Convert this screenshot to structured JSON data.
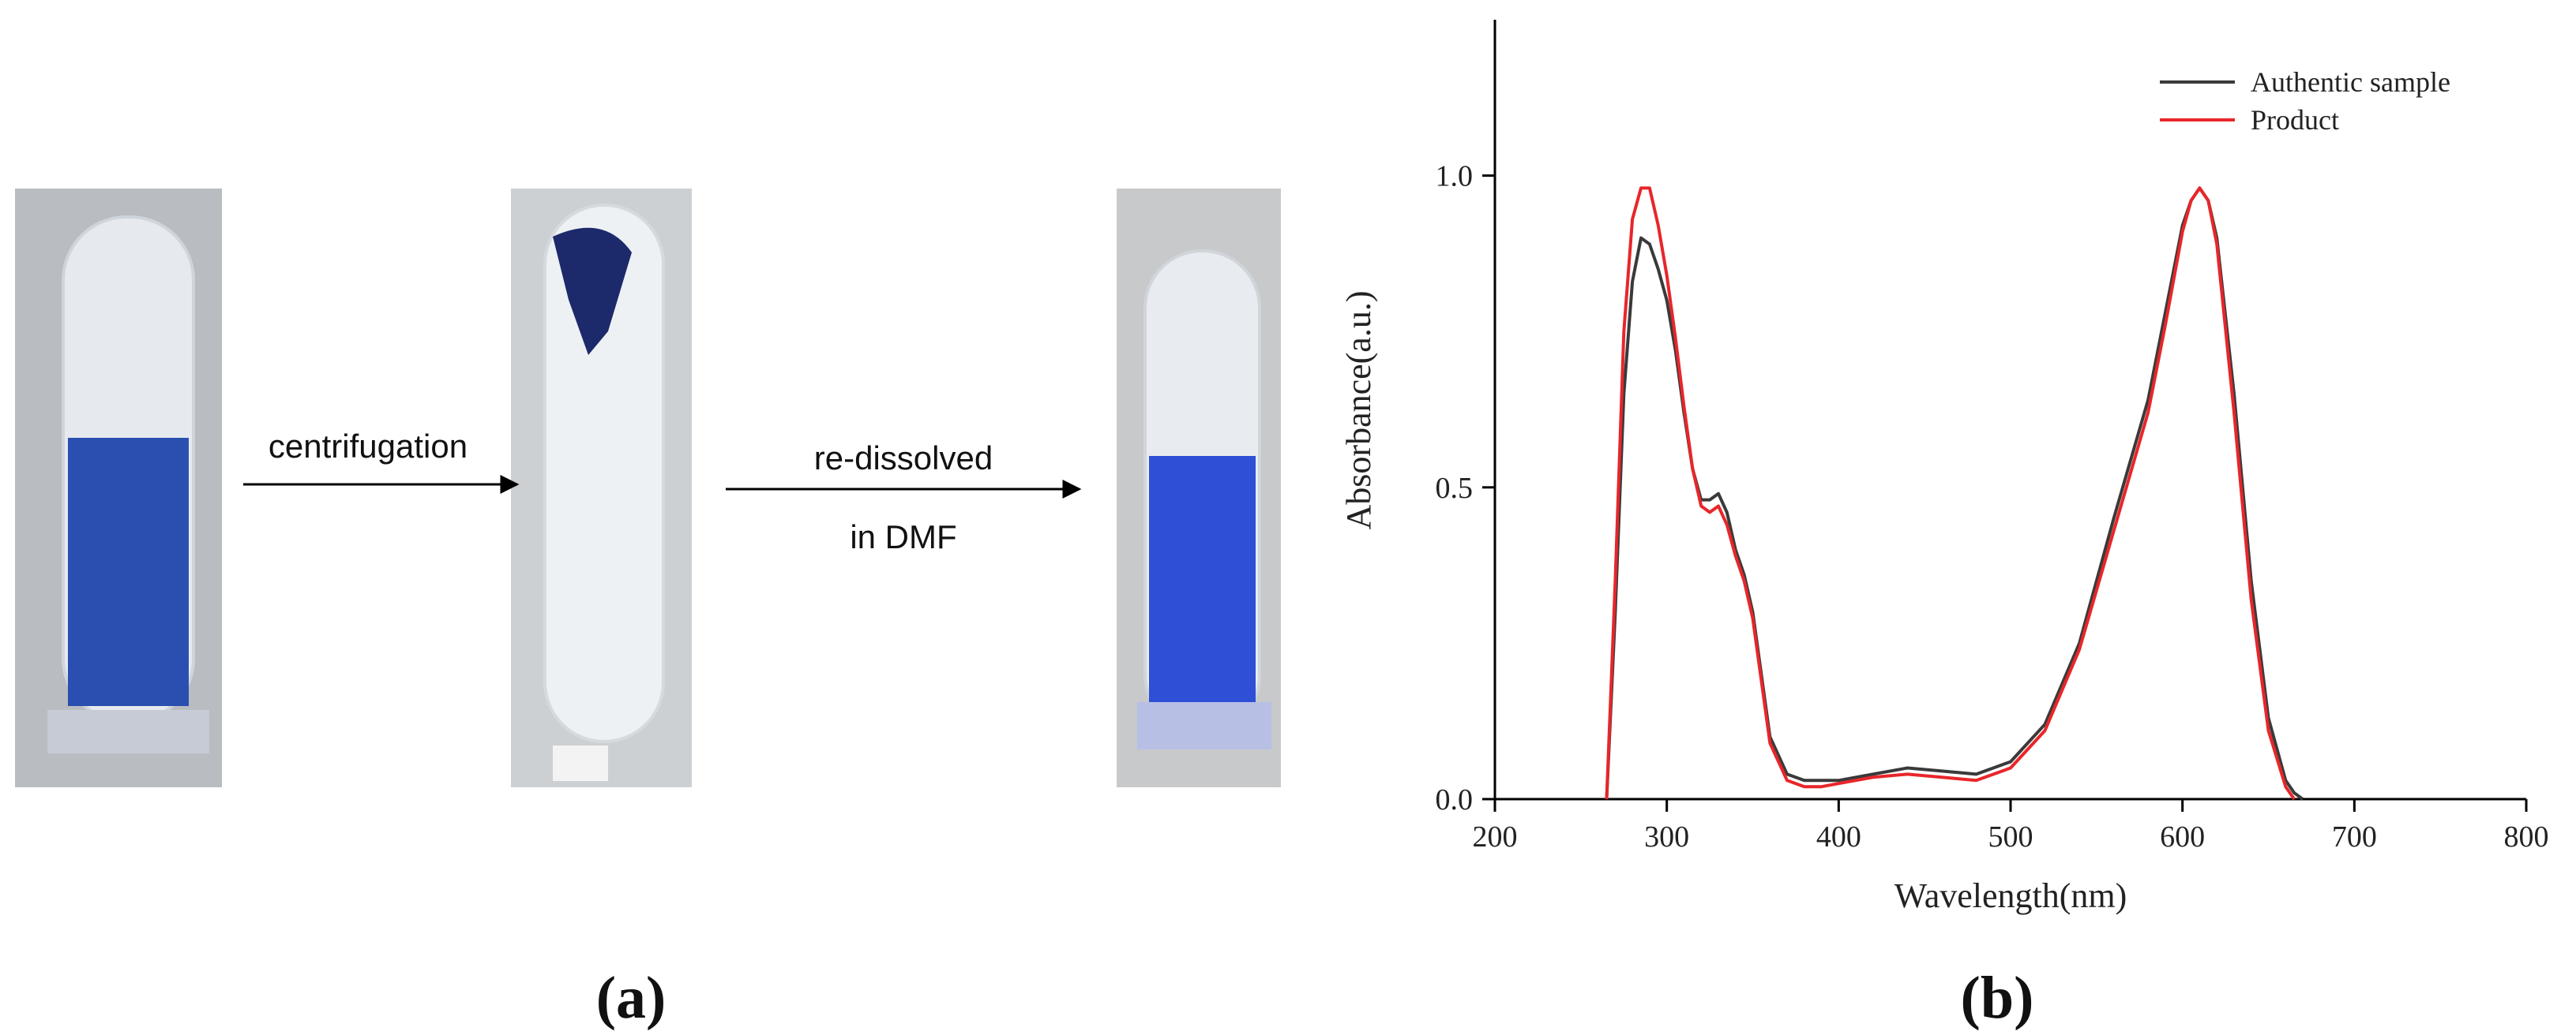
{
  "panel_a": {
    "step_1": "centrifugation",
    "step_2_line_1": "re-dissolved",
    "step_2_line_2": "in DMF",
    "label": "(a)"
  },
  "panel_b_label": "(b)",
  "chart_data": {
    "type": "line",
    "x_label": "Wavelength(nm)",
    "y_label": "Absorbance(a.u.)",
    "x": [
      265,
      270,
      275,
      280,
      285,
      290,
      295,
      300,
      305,
      310,
      315,
      320,
      325,
      330,
      335,
      340,
      345,
      350,
      355,
      360,
      370,
      380,
      390,
      400,
      420,
      440,
      460,
      480,
      500,
      520,
      540,
      560,
      580,
      590,
      600,
      605,
      610,
      615,
      620,
      630,
      640,
      650,
      660,
      665,
      670
    ],
    "series": [
      {
        "name": "Authentic sample",
        "color": "#3a3a3a",
        "values": [
          0,
          0.3,
          0.65,
          0.83,
          0.9,
          0.89,
          0.85,
          0.8,
          0.72,
          0.62,
          0.53,
          0.48,
          0.48,
          0.49,
          0.46,
          0.4,
          0.36,
          0.3,
          0.2,
          0.1,
          0.04,
          0.03,
          0.03,
          0.03,
          0.04,
          0.05,
          0.045,
          0.04,
          0.06,
          0.12,
          0.25,
          0.45,
          0.64,
          0.78,
          0.92,
          0.96,
          0.98,
          0.96,
          0.9,
          0.65,
          0.35,
          0.13,
          0.03,
          0.01,
          0
        ]
      },
      {
        "name": "Product",
        "color": "#e8262a",
        "values": [
          0,
          0.35,
          0.75,
          0.93,
          0.98,
          0.98,
          0.92,
          0.84,
          0.74,
          0.63,
          0.53,
          0.47,
          0.46,
          0.47,
          0.44,
          0.39,
          0.35,
          0.29,
          0.19,
          0.09,
          0.03,
          0.02,
          0.02,
          0.025,
          0.035,
          0.04,
          0.035,
          0.03,
          0.05,
          0.11,
          0.24,
          0.43,
          0.62,
          0.76,
          0.91,
          0.96,
          0.98,
          0.96,
          0.89,
          0.62,
          0.32,
          0.11,
          0.02,
          0,
          null
        ]
      }
    ],
    "xlim": [
      200,
      800
    ],
    "xticks": [
      200,
      300,
      400,
      500,
      600,
      700,
      800
    ],
    "ylim": [
      0,
      1.25
    ],
    "yticks": [
      {
        "value": 0,
        "label": "0.0"
      },
      {
        "value": 0.5,
        "label": "0.5"
      },
      {
        "value": 1,
        "label": "1.0"
      }
    ],
    "legend": "upper right"
  }
}
